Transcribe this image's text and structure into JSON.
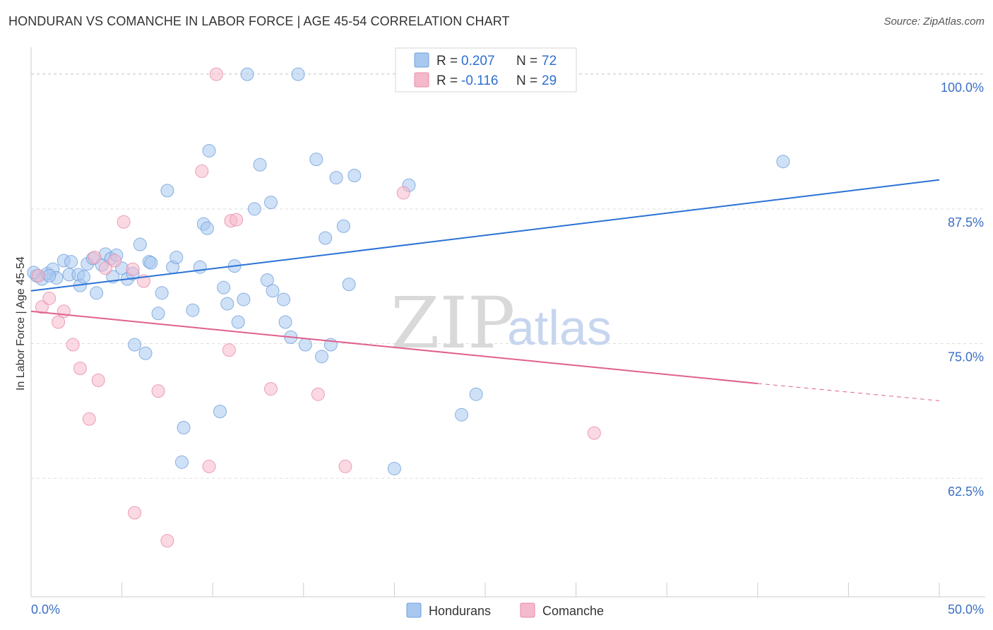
{
  "title": "HONDURAN VS COMANCHE IN LABOR FORCE | AGE 45-54 CORRELATION CHART",
  "source": "Source: ZipAtlas.com",
  "watermark": {
    "zip": "ZIP",
    "atlas": "atlas"
  },
  "legend_top": [
    {
      "r_label": "R =",
      "r_value": "0.207",
      "n_label": "N =",
      "n_value": "72",
      "color": "#a8c8f0"
    },
    {
      "r_label": "R =",
      "r_value": "-0.116",
      "n_label": "N =",
      "n_value": "29",
      "color": "#f5b9cc"
    }
  ],
  "legend_bottom": [
    {
      "label": "Hondurans",
      "color": "#a8c8f0"
    },
    {
      "label": "Comanche",
      "color": "#f5b9cc"
    }
  ],
  "colors": {
    "blue_fill": "#a8c8f0",
    "blue_stroke": "#6f9fdb",
    "blue_line": "#2a72d5",
    "pink_fill": "#f5b9cc",
    "pink_stroke": "#e88aa8",
    "pink_line": "#e0608e",
    "grid": "#dddddd",
    "axis_text": "#3b6fc4"
  },
  "chart_data": {
    "type": "scatter",
    "title": "HONDURAN VS COMANCHE IN LABOR FORCE | AGE 45-54 CORRELATION CHART",
    "xlabel": "",
    "ylabel": "In Labor Force | Age 45-54",
    "xlim": [
      0,
      50
    ],
    "ylim": [
      51.5,
      102.5
    ],
    "x_ticks": [
      0,
      5,
      10,
      15,
      20,
      25,
      30,
      35,
      40,
      45,
      50
    ],
    "x_tick_labels": [
      {
        "value": 0,
        "label": "0.0%"
      },
      {
        "value": 50,
        "label": "50.0%"
      }
    ],
    "y_ticks": [
      {
        "value": 62.5,
        "label": "62.5%"
      },
      {
        "value": 75.0,
        "label": "75.0%"
      },
      {
        "value": 87.5,
        "label": "87.5%"
      },
      {
        "value": 100.0,
        "label": "100.0%"
      }
    ],
    "grid": true,
    "series": [
      {
        "name": "Hondurans",
        "color": "#a8c8f0",
        "points": [
          [
            0.3,
            81.3
          ],
          [
            0.6,
            81.0
          ],
          [
            0.9,
            81.5
          ],
          [
            1.2,
            81.9
          ],
          [
            1.4,
            81.1
          ],
          [
            1.8,
            82.7
          ],
          [
            2.1,
            81.4
          ],
          [
            2.2,
            82.6
          ],
          [
            2.6,
            81.4
          ],
          [
            2.7,
            80.4
          ],
          [
            2.9,
            81.2
          ],
          [
            3.1,
            82.4
          ],
          [
            3.4,
            82.9
          ],
          [
            3.6,
            79.7
          ],
          [
            3.9,
            82.3
          ],
          [
            4.1,
            83.3
          ],
          [
            4.4,
            82.9
          ],
          [
            4.5,
            81.2
          ],
          [
            4.7,
            83.2
          ],
          [
            5.0,
            82.0
          ],
          [
            5.3,
            81.0
          ],
          [
            5.6,
            81.5
          ],
          [
            5.7,
            74.9
          ],
          [
            6.0,
            84.2
          ],
          [
            6.3,
            74.1
          ],
          [
            6.5,
            82.6
          ],
          [
            6.6,
            82.5
          ],
          [
            7.0,
            77.8
          ],
          [
            7.2,
            79.7
          ],
          [
            7.5,
            89.2
          ],
          [
            7.8,
            82.1
          ],
          [
            8.0,
            83.0
          ],
          [
            8.4,
            67.2
          ],
          [
            8.3,
            64.0
          ],
          [
            8.9,
            78.1
          ],
          [
            9.3,
            82.1
          ],
          [
            9.5,
            86.1
          ],
          [
            9.7,
            85.7
          ],
          [
            9.8,
            92.9
          ],
          [
            10.4,
            68.7
          ],
          [
            10.6,
            80.2
          ],
          [
            10.8,
            78.7
          ],
          [
            11.2,
            82.2
          ],
          [
            11.4,
            77.0
          ],
          [
            11.7,
            79.1
          ],
          [
            11.9,
            100.0
          ],
          [
            12.3,
            87.5
          ],
          [
            12.6,
            91.6
          ],
          [
            13.0,
            80.9
          ],
          [
            13.2,
            88.1
          ],
          [
            13.3,
            79.9
          ],
          [
            13.9,
            79.1
          ],
          [
            14.0,
            77.0
          ],
          [
            14.3,
            75.6
          ],
          [
            14.7,
            100.0
          ],
          [
            15.1,
            74.9
          ],
          [
            15.7,
            92.1
          ],
          [
            16.0,
            73.8
          ],
          [
            16.2,
            84.8
          ],
          [
            16.5,
            74.9
          ],
          [
            16.8,
            90.4
          ],
          [
            17.2,
            85.9
          ],
          [
            17.5,
            80.5
          ],
          [
            17.8,
            90.6
          ],
          [
            20.0,
            63.4
          ],
          [
            20.8,
            89.7
          ],
          [
            23.7,
            68.4
          ],
          [
            24.5,
            70.3
          ],
          [
            28.9,
            100.0
          ],
          [
            41.4,
            91.9
          ],
          [
            0.15,
            81.6
          ],
          [
            1.0,
            81.3
          ]
        ]
      },
      {
        "name": "Comanche",
        "color": "#f5b9cc",
        "points": [
          [
            0.4,
            81.3
          ],
          [
            0.6,
            78.4
          ],
          [
            1.0,
            79.2
          ],
          [
            1.5,
            77.0
          ],
          [
            1.8,
            78.0
          ],
          [
            2.3,
            74.9
          ],
          [
            2.7,
            72.7
          ],
          [
            3.2,
            68.0
          ],
          [
            3.5,
            83.0
          ],
          [
            3.7,
            71.6
          ],
          [
            4.1,
            82.0
          ],
          [
            4.6,
            82.7
          ],
          [
            5.1,
            86.3
          ],
          [
            5.6,
            81.9
          ],
          [
            5.7,
            59.3
          ],
          [
            6.2,
            80.8
          ],
          [
            7.0,
            70.6
          ],
          [
            7.5,
            56.7
          ],
          [
            9.4,
            91.0
          ],
          [
            9.8,
            63.6
          ],
          [
            10.2,
            100.0
          ],
          [
            10.9,
            74.4
          ],
          [
            11.0,
            86.4
          ],
          [
            11.3,
            86.5
          ],
          [
            13.2,
            70.8
          ],
          [
            15.8,
            70.3
          ],
          [
            17.3,
            63.6
          ],
          [
            20.5,
            89.0
          ],
          [
            31.0,
            66.7
          ]
        ]
      }
    ],
    "trendlines": [
      {
        "series": "Hondurans",
        "x0": 0,
        "y0": 79.9,
        "x1": 50,
        "y1": 90.2,
        "style": "solid"
      },
      {
        "series": "Comanche",
        "x0": 0,
        "y0": 78.0,
        "x1": 40,
        "y1": 71.3,
        "style": "solid"
      },
      {
        "series": "Comanche",
        "x0": 40,
        "y0": 71.3,
        "x1": 50,
        "y1": 69.7,
        "style": "dashed"
      }
    ]
  }
}
